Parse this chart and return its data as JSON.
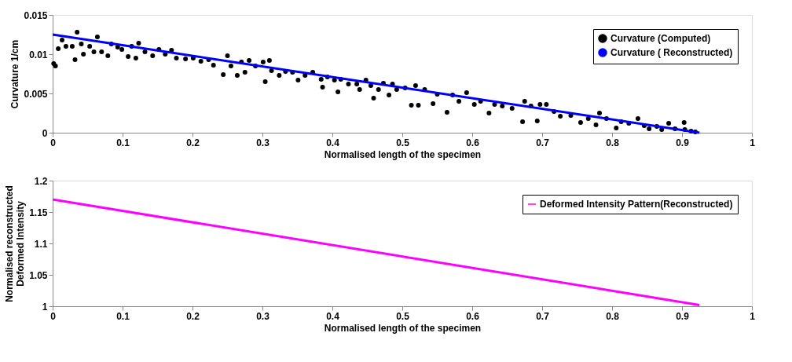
{
  "chart_data": [
    {
      "type": "scatter",
      "xlabel": "Normalised length of the specimen",
      "ylabel": "Curvature 1/cm",
      "xlim": [
        0,
        1
      ],
      "xticks": [
        0,
        0.1,
        0.2,
        0.3,
        0.4,
        0.5,
        0.6,
        0.7,
        0.8,
        0.9,
        1
      ],
      "ylim": [
        0,
        0.015
      ],
      "yticks": [
        0,
        0.005,
        0.01,
        0.015
      ],
      "grid": false,
      "legend": "top right",
      "series": [
        {
          "name": "Curvature (Computed)",
          "color": "#000000",
          "marker": "circle",
          "x": [
            0.0015,
            0.004,
            0.008,
            0.0135,
            0.019,
            0.028,
            0.032,
            0.035,
            0.041,
            0.044,
            0.053,
            0.059,
            0.064,
            0.07,
            0.079,
            0.084,
            0.093,
            0.099,
            0.108,
            0.113,
            0.119,
            0.123,
            0.132,
            0.143,
            0.152,
            0.161,
            0.17,
            0.177,
            0.19,
            0.201,
            0.212,
            0.223,
            0.23,
            0.244,
            0.25,
            0.255,
            0.264,
            0.27,
            0.275,
            0.281,
            0.29,
            0.301,
            0.304,
            0.31,
            0.313,
            0.324,
            0.333,
            0.343,
            0.351,
            0.361,
            0.372,
            0.384,
            0.386,
            0.393,
            0.403,
            0.408,
            0.412,
            0.423,
            0.435,
            0.439,
            0.448,
            0.455,
            0.459,
            0.466,
            0.473,
            0.481,
            0.486,
            0.492,
            0.504,
            0.513,
            0.519,
            0.523,
            0.532,
            0.544,
            0.55,
            0.564,
            0.572,
            0.581,
            0.592,
            0.603,
            0.612,
            0.624,
            0.632,
            0.643,
            0.657,
            0.672,
            0.675,
            0.684,
            0.693,
            0.697,
            0.706,
            0.717,
            0.726,
            0.741,
            0.755,
            0.766,
            0.777,
            0.782,
            0.792,
            0.806,
            0.813,
            0.824,
            0.837,
            0.846,
            0.853,
            0.864,
            0.871,
            0.881,
            0.89,
            0.903,
            0.904,
            0.913,
            0.919
          ],
          "values": [
            0.0088,
            0.0085,
            0.0107,
            0.0118,
            0.011,
            0.011,
            0.0093,
            0.0128,
            0.0113,
            0.01,
            0.011,
            0.0103,
            0.0122,
            0.0103,
            0.0098,
            0.0113,
            0.0109,
            0.0106,
            0.0097,
            0.011,
            0.0095,
            0.0114,
            0.0103,
            0.0098,
            0.0106,
            0.01,
            0.0105,
            0.0095,
            0.0094,
            0.0095,
            0.0091,
            0.0093,
            0.0086,
            0.0074,
            0.0098,
            0.0085,
            0.0073,
            0.009,
            0.0077,
            0.0092,
            0.0085,
            0.009,
            0.0065,
            0.0092,
            0.0079,
            0.0073,
            0.0078,
            0.0077,
            0.0067,
            0.0073,
            0.0077,
            0.0068,
            0.0058,
            0.0071,
            0.0067,
            0.0052,
            0.0068,
            0.0062,
            0.0062,
            0.0055,
            0.0067,
            0.006,
            0.0044,
            0.0055,
            0.0063,
            0.0048,
            0.0062,
            0.0055,
            0.0057,
            0.0035,
            0.006,
            0.0035,
            0.0055,
            0.0037,
            0.0049,
            0.0026,
            0.0048,
            0.004,
            0.0051,
            0.0036,
            0.004,
            0.0025,
            0.0036,
            0.0034,
            0.0031,
            0.0014,
            0.004,
            0.0034,
            0.0015,
            0.0036,
            0.0036,
            0.0027,
            0.0021,
            0.0022,
            0.0013,
            0.0018,
            0.001,
            0.0025,
            0.0018,
            0.0006,
            0.0014,
            0.0012,
            0.0018,
            0.0009,
            0.0005,
            0.0008,
            0.0004,
            0.0012,
            0.0005,
            0.0013,
            0.0004,
            0.0002,
            0.0001
          ]
        },
        {
          "name": "Curvature ( Reconstructed)",
          "color": "#0000ff",
          "type": "line",
          "x": [
            0,
            0.925
          ],
          "values": [
            0.0125,
            0
          ]
        }
      ]
    },
    {
      "type": "line",
      "xlabel": "Normalised length of the specimen",
      "ylabel": "Normalised reconstructed\nDeformed Intensity",
      "xlim": [
        0,
        1
      ],
      "xticks": [
        0,
        0.1,
        0.2,
        0.3,
        0.4,
        0.5,
        0.6,
        0.7,
        0.8,
        0.9,
        1
      ],
      "ylim": [
        1,
        1.2
      ],
      "yticks": [
        1,
        1.05,
        1.1,
        1.15,
        1.2
      ],
      "grid": false,
      "legend": "top right",
      "series": [
        {
          "name": "Deformed Intensity Pattern(Reconstructed)",
          "color": "#ff00ff",
          "x": [
            0,
            0.925
          ],
          "values": [
            1.17,
            1.002
          ]
        }
      ]
    }
  ]
}
